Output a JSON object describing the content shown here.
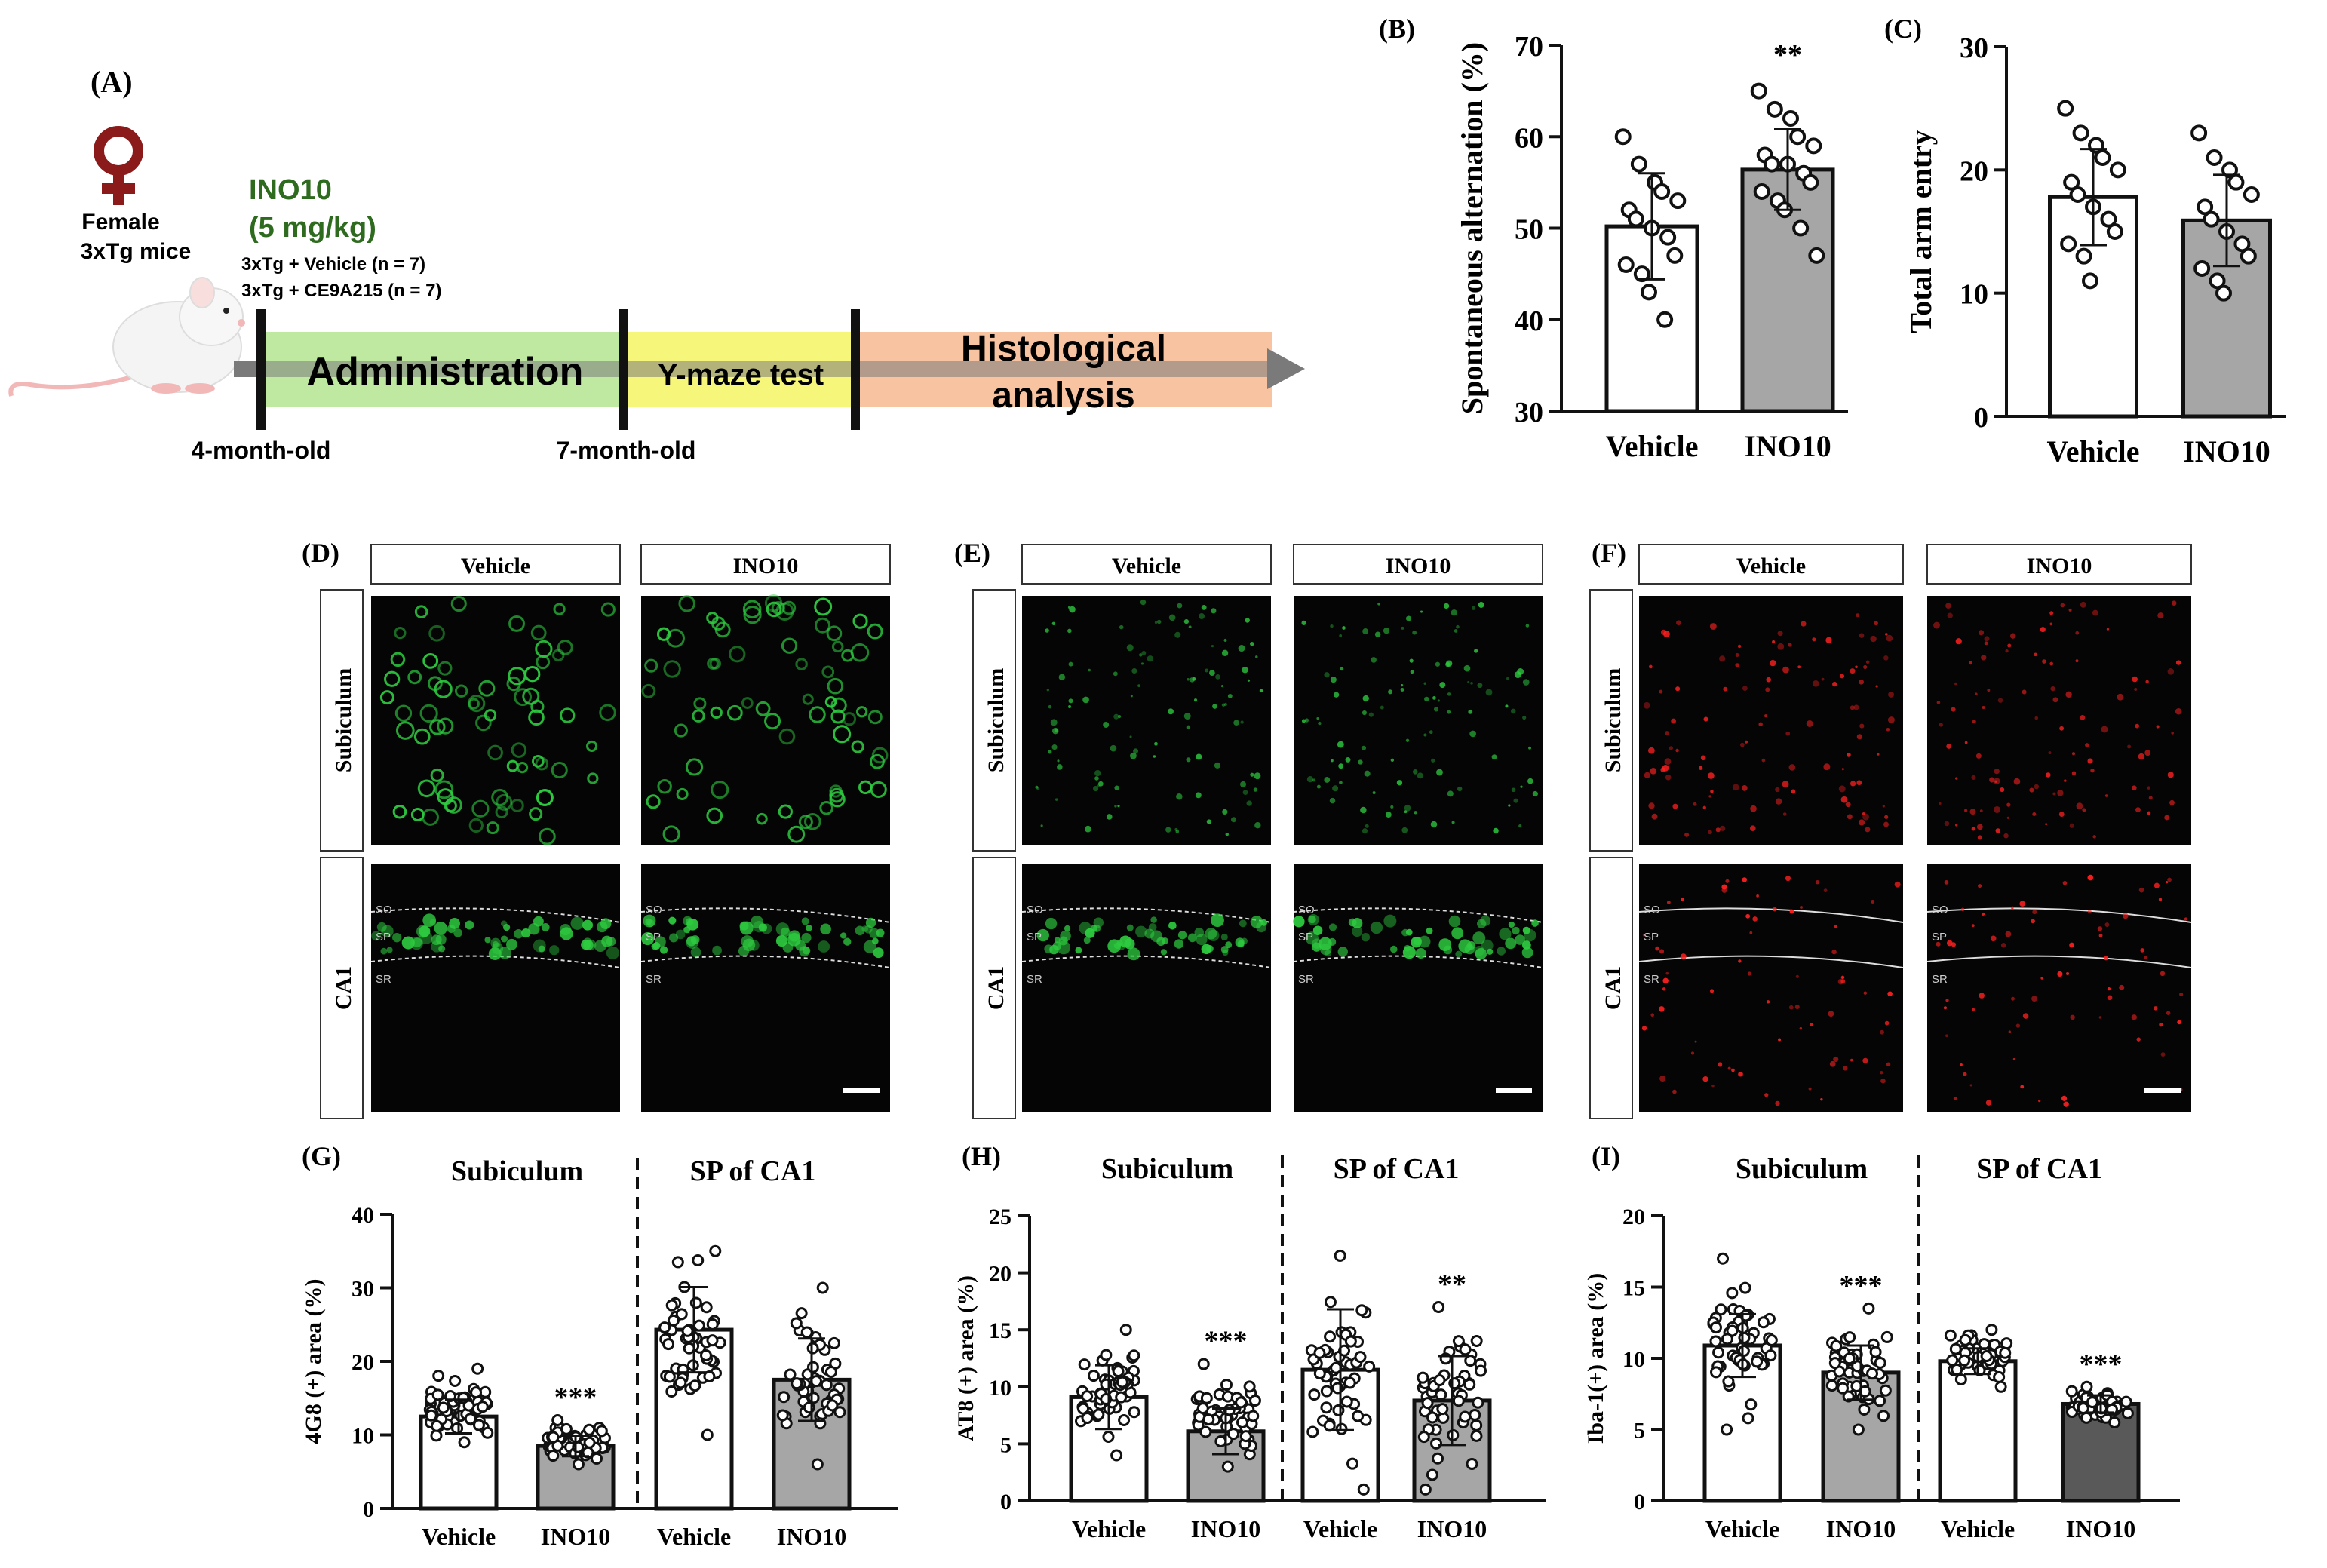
{
  "panel_a": {
    "label": "(A)",
    "sex_label": "Female",
    "strain_label": "3xTg mice",
    "drug_name": "INO10",
    "drug_dose": "(5 mg/kg)",
    "group_vehicle": "3xTg + Vehicle (n = 7)",
    "group_treated": "3xTg + CE9A215 (n = 7)",
    "stage_administration": "Administration",
    "stage_ymaze": "Y-maze test",
    "stage_histology_line1": "Histological",
    "stage_histology_line2": "analysis",
    "age_start": "4-month-old",
    "age_mid": "7-month-old",
    "colors": {
      "drug_text": "#2e6b1f",
      "administration": "#bfe8a0",
      "ymaze": "#f6f67a",
      "histology": "#f8c3a0",
      "arrow": "#7a7a7a",
      "venus": "#8b1a1a"
    }
  },
  "image_panels": [
    {
      "label": "(D)",
      "col_headers": [
        "Vehicle",
        "INO10"
      ],
      "row_headers": [
        "Subiculum",
        "CA1"
      ],
      "layer_labels": [
        "SO",
        "SP",
        "SR"
      ],
      "stain_color": "#2ecc40"
    },
    {
      "label": "(E)",
      "col_headers": [
        "Vehicle",
        "INO10"
      ],
      "row_headers": [
        "Subiculum",
        "CA1"
      ],
      "layer_labels": [
        "SO",
        "SP",
        "SR"
      ],
      "stain_color": "#2ecc40"
    },
    {
      "label": "(F)",
      "col_headers": [
        "Vehicle",
        "INO10"
      ],
      "row_headers": [
        "Subiculum",
        "CA1"
      ],
      "layer_labels": [
        "SO",
        "SP",
        "SR"
      ],
      "stain_color": "#ff2020"
    }
  ],
  "chart_data": [
    {
      "id": "B",
      "label": "(B)",
      "type": "bar",
      "ylabel": "Spontaneous alternation (%)",
      "ylim": [
        30,
        70
      ],
      "yticks": [
        30,
        40,
        50,
        60,
        70
      ],
      "categories": [
        "Vehicle",
        "INO10"
      ],
      "values": [
        50.2,
        56.4
      ],
      "sd": [
        5.8,
        4.4
      ],
      "bar_colors": [
        "#ffffff",
        "#a6a6a6"
      ],
      "significance": [
        "",
        "**"
      ],
      "points": [
        [
          60,
          57,
          55,
          54,
          53,
          52,
          51,
          50,
          49,
          47,
          46,
          45,
          43,
          40
        ],
        [
          65,
          63,
          62,
          60,
          59,
          58,
          57,
          57,
          56,
          55,
          54,
          53,
          52,
          50,
          47
        ]
      ]
    },
    {
      "id": "C",
      "label": "(C)",
      "type": "bar",
      "ylabel": "Total arm entry",
      "ylim": [
        0,
        30
      ],
      "yticks": [
        0,
        10,
        20,
        30
      ],
      "categories": [
        "Vehicle",
        "INO10"
      ],
      "values": [
        17.8,
        15.9
      ],
      "sd": [
        3.9,
        3.7
      ],
      "bar_colors": [
        "#ffffff",
        "#a6a6a6"
      ],
      "significance": [
        "",
        ""
      ],
      "points": [
        [
          25,
          23,
          22,
          21,
          20,
          19,
          18,
          17,
          16,
          15,
          14,
          13,
          11
        ],
        [
          23,
          21,
          20,
          19,
          18,
          17,
          16,
          15,
          14,
          13,
          12,
          11,
          10
        ]
      ]
    },
    {
      "id": "G",
      "label": "(G)",
      "type": "bar",
      "ylabel": "4G8 (+) area (%)",
      "ylim": [
        0,
        40
      ],
      "yticks": [
        0,
        10,
        20,
        30,
        40
      ],
      "group_titles": [
        "Subiculum",
        "SP of CA1"
      ],
      "categories": [
        "Vehicle",
        "INO10",
        "Vehicle",
        "INO10"
      ],
      "values": [
        12.5,
        8.5,
        24.3,
        17.5
      ],
      "sd": [
        2.3,
        1.4,
        5.8,
        5.6
      ],
      "bar_colors": [
        "#ffffff",
        "#a6a6a6",
        "#ffffff",
        "#a6a6a6"
      ],
      "significance": [
        "",
        "***",
        "",
        ""
      ],
      "point_ranges": [
        [
          9,
          19
        ],
        [
          6,
          12
        ],
        [
          10,
          35
        ],
        [
          6,
          30
        ]
      ]
    },
    {
      "id": "H",
      "label": "(H)",
      "type": "bar",
      "ylabel": "AT8 (+) area (%)",
      "ylim": [
        0,
        25
      ],
      "yticks": [
        0,
        5,
        10,
        15,
        20,
        25
      ],
      "group_titles": [
        "Subiculum",
        "SP of CA1"
      ],
      "categories": [
        "Vehicle",
        "INO10",
        "Vehicle",
        "INO10"
      ],
      "values": [
        9.1,
        6.1,
        11.5,
        8.8
      ],
      "sd": [
        2.8,
        2.0,
        5.3,
        3.9
      ],
      "bar_colors": [
        "#ffffff",
        "#a6a6a6",
        "#ffffff",
        "#a6a6a6"
      ],
      "significance": [
        "",
        "***",
        "",
        "**"
      ],
      "point_ranges": [
        [
          4,
          15
        ],
        [
          3,
          12
        ],
        [
          1,
          21.5
        ],
        [
          1,
          17
        ]
      ]
    },
    {
      "id": "I",
      "label": "(I)",
      "type": "bar",
      "ylabel": "Iba-1(+) area (%)",
      "ylim": [
        0,
        20
      ],
      "yticks": [
        0,
        5,
        10,
        15,
        20
      ],
      "group_titles": [
        "Subiculum",
        "SP of CA1"
      ],
      "categories": [
        "Vehicle",
        "INO10",
        "Vehicle",
        "INO10"
      ],
      "values": [
        10.9,
        9.0,
        9.8,
        6.8
      ],
      "sd": [
        2.2,
        1.9,
        0.9,
        0.6
      ],
      "bar_colors": [
        "#ffffff",
        "#a6a6a6",
        "#ffffff",
        "#595959"
      ],
      "significance": [
        "",
        "***",
        "",
        "***"
      ],
      "point_ranges": [
        [
          5,
          17
        ],
        [
          5,
          13.5
        ],
        [
          8,
          12
        ],
        [
          5.5,
          8
        ]
      ]
    }
  ]
}
